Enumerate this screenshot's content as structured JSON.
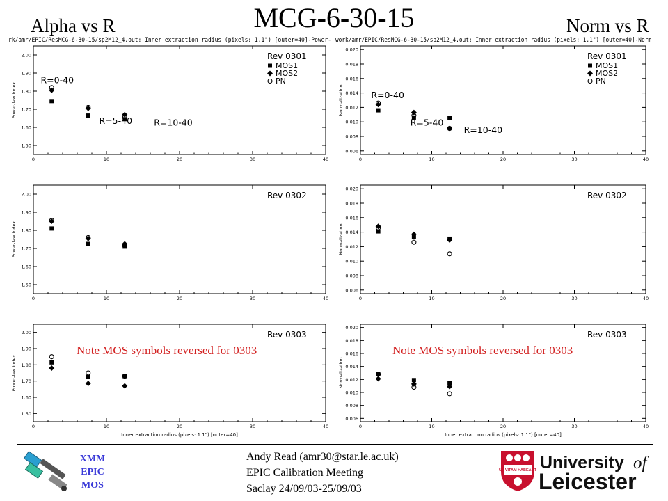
{
  "slide": {
    "title": "MCG-6-30-15",
    "left_heading": "Alpha vs R",
    "right_heading": "Norm vs R",
    "note_text": "Note MOS symbols reversed for 0303",
    "footer": {
      "xmm_lines": [
        "XMM",
        "EPIC",
        "MOS"
      ],
      "author": "Andy Read (amr30@star.le.ac.uk)",
      "meeting": "EPIC Calibration Meeting",
      "place_date": "Saclay 24/09/03-25/09/03"
    },
    "logo": {
      "line1": "University",
      "of": "of",
      "line2": "Leicester",
      "motto": "UT VITAM HABEANT",
      "brand_color": "#c8102e"
    }
  },
  "chart_data": [
    {
      "type": "scatter",
      "header": "rk/amr/EPIC/ResMCG-6-30-15/sp2M12_4.out: Inner extraction radius (pixels: 1.1\") [outer=40]-Power-",
      "xlim": [
        0,
        40
      ],
      "ylim": [
        1.45,
        2.05
      ],
      "yticks": [
        "1.50",
        "1.60",
        "1.70",
        "1.80",
        "1.90",
        "2.00"
      ],
      "ytick_values": [
        1.5,
        1.6,
        1.7,
        1.8,
        1.9,
        2.0
      ],
      "xticks": [
        "0",
        "10",
        "20",
        "30",
        "40"
      ],
      "ylabel": "Power-law index",
      "xlabel": "",
      "rev_label": "Rev 0301",
      "legend": [
        "MOS1",
        "MOS2",
        "PN"
      ],
      "annotations": [
        {
          "text": "R=0-40",
          "x": 1.0,
          "y": 1.845
        },
        {
          "text": "R=5-40",
          "x": 9.0,
          "y": 1.62
        },
        {
          "text": "R=10-40",
          "x": 16.5,
          "y": 1.61
        }
      ],
      "series": [
        {
          "name": "MOS1",
          "marker": "square",
          "x": [
            2.5,
            7.5,
            12.5
          ],
          "y": [
            1.745,
            1.665,
            1.645
          ]
        },
        {
          "name": "MOS2",
          "marker": "diamond",
          "x": [
            2.5,
            7.5,
            12.5
          ],
          "y": [
            1.805,
            1.705,
            1.67
          ]
        },
        {
          "name": "PN",
          "marker": "circle",
          "x": [
            2.5,
            7.5,
            12.5
          ],
          "y": [
            1.82,
            1.71,
            1.655
          ]
        }
      ]
    },
    {
      "type": "scatter",
      "header": "work/amr/EPIC/ResMCG-6-30-15/sp2M12_4.out: Inner extraction radius (pixels: 1.1\") [outer=40]-Norm",
      "xlim": [
        0,
        40
      ],
      "ylim": [
        0.0055,
        0.0205
      ],
      "yticks": [
        "0.006",
        "0.008",
        "0.010",
        "0.012",
        "0.014",
        "0.016",
        "0.018",
        "0.020"
      ],
      "ytick_values": [
        0.006,
        0.008,
        0.01,
        0.012,
        0.014,
        0.016,
        0.018,
        0.02
      ],
      "xticks": [
        "0",
        "10",
        "20",
        "30",
        "40"
      ],
      "ylabel": "Normalization",
      "xlabel": "",
      "rev_label": "Rev 0301",
      "legend": [
        "MOS1",
        "MOS2",
        "PN"
      ],
      "annotations": [
        {
          "text": "R=0-40",
          "x": 1.5,
          "y": 0.0133
        },
        {
          "text": "R=5-40",
          "x": 7.0,
          "y": 0.0095
        },
        {
          "text": "R=10-40",
          "x": 14.5,
          "y": 0.0085
        }
      ],
      "series": [
        {
          "name": "MOS1",
          "marker": "square",
          "x": [
            2.5,
            7.5,
            12.5
          ],
          "y": [
            0.0116,
            0.0106,
            0.0105
          ]
        },
        {
          "name": "MOS2",
          "marker": "diamond",
          "x": [
            2.5,
            7.5,
            12.5
          ],
          "y": [
            0.0124,
            0.0113,
            0.0091
          ]
        },
        {
          "name": "PN",
          "marker": "circle",
          "x": [
            2.5,
            7.5,
            12.5
          ],
          "y": [
            0.0126,
            0.0109,
            0.0091
          ]
        }
      ]
    },
    {
      "type": "scatter",
      "header": "",
      "xlim": [
        0,
        40
      ],
      "ylim": [
        1.45,
        2.05
      ],
      "yticks": [
        "1.50",
        "1.60",
        "1.70",
        "1.80",
        "1.90",
        "2.00"
      ],
      "ytick_values": [
        1.5,
        1.6,
        1.7,
        1.8,
        1.9,
        2.0
      ],
      "xticks": [
        "0",
        "10",
        "20",
        "30",
        "40"
      ],
      "ylabel": "Power-law index",
      "xlabel": "",
      "rev_label": "Rev 0302",
      "legend": [],
      "annotations": [],
      "series": [
        {
          "name": "MOS1",
          "marker": "square",
          "x": [
            2.5,
            7.5,
            12.5
          ],
          "y": [
            1.81,
            1.725,
            1.71
          ]
        },
        {
          "name": "MOS2",
          "marker": "diamond",
          "x": [
            2.5,
            7.5,
            12.5
          ],
          "y": [
            1.85,
            1.755,
            1.725
          ]
        },
        {
          "name": "PN",
          "marker": "circle",
          "x": [
            2.5,
            7.5,
            12.5
          ],
          "y": [
            1.855,
            1.76,
            1.715
          ]
        }
      ]
    },
    {
      "type": "scatter",
      "header": "",
      "xlim": [
        0,
        40
      ],
      "ylim": [
        0.0055,
        0.0205
      ],
      "yticks": [
        "0.006",
        "0.008",
        "0.010",
        "0.012",
        "0.014",
        "0.016",
        "0.018",
        "0.020"
      ],
      "ytick_values": [
        0.006,
        0.008,
        0.01,
        0.012,
        0.014,
        0.016,
        0.018,
        0.02
      ],
      "xticks": [
        "0",
        "10",
        "20",
        "30",
        "40"
      ],
      "ylabel": "Normalization",
      "xlabel": "",
      "rev_label": "Rev 0302",
      "legend": [],
      "annotations": [],
      "series": [
        {
          "name": "MOS1",
          "marker": "square",
          "x": [
            2.5,
            7.5,
            12.5
          ],
          "y": [
            0.0141,
            0.0133,
            0.0131
          ]
        },
        {
          "name": "MOS2",
          "marker": "diamond",
          "x": [
            2.5,
            7.5,
            12.5
          ],
          "y": [
            0.0148,
            0.0137,
            0.0129
          ]
        },
        {
          "name": "PN",
          "marker": "circle",
          "x": [
            2.5,
            7.5,
            12.5
          ],
          "y": [
            0.0146,
            0.0126,
            0.011
          ]
        }
      ]
    },
    {
      "type": "scatter",
      "header": "",
      "xlim": [
        0,
        40
      ],
      "ylim": [
        1.45,
        2.05
      ],
      "yticks": [
        "1.50",
        "1.60",
        "1.70",
        "1.80",
        "1.90",
        "2.00"
      ],
      "ytick_values": [
        1.5,
        1.6,
        1.7,
        1.8,
        1.9,
        2.0
      ],
      "xticks": [
        "0",
        "10",
        "20",
        "30",
        "40"
      ],
      "ylabel": "Power-law index",
      "xlabel": "Inner extraction radius (pixels: 1.1\") [outer=40]",
      "rev_label": "Rev 0303",
      "legend": [],
      "annotations": [],
      "series": [
        {
          "name": "MOS1",
          "marker": "square",
          "x": [
            2.5,
            7.5,
            12.5
          ],
          "y": [
            1.815,
            1.725,
            1.73
          ]
        },
        {
          "name": "MOS2",
          "marker": "diamond",
          "x": [
            2.5,
            7.5,
            12.5
          ],
          "y": [
            1.78,
            1.685,
            1.67
          ]
        },
        {
          "name": "PN",
          "marker": "circle",
          "x": [
            2.5,
            7.5,
            12.5
          ],
          "y": [
            1.85,
            1.75,
            1.73
          ]
        }
      ]
    },
    {
      "type": "scatter",
      "header": "",
      "xlim": [
        0,
        40
      ],
      "ylim": [
        0.0055,
        0.0205
      ],
      "yticks": [
        "0.006",
        "0.008",
        "0.010",
        "0.012",
        "0.014",
        "0.016",
        "0.018",
        "0.020"
      ],
      "ytick_values": [
        0.006,
        0.008,
        0.01,
        0.012,
        0.014,
        0.016,
        0.018,
        0.02
      ],
      "xticks": [
        "0",
        "10",
        "20",
        "30",
        "40"
      ],
      "ylabel": "Normalization",
      "xlabel": "Inner extraction radius (pixels: 1.1\") [outer=40]",
      "rev_label": "Rev 0303",
      "legend": [],
      "annotations": [],
      "series": [
        {
          "name": "MOS1",
          "marker": "square",
          "x": [
            2.5,
            7.5,
            12.5
          ],
          "y": [
            0.0128,
            0.0119,
            0.0115
          ]
        },
        {
          "name": "MOS2",
          "marker": "diamond",
          "x": [
            2.5,
            7.5,
            12.5
          ],
          "y": [
            0.0121,
            0.0113,
            0.0109
          ]
        },
        {
          "name": "PN",
          "marker": "circle",
          "x": [
            2.5,
            7.5,
            12.5
          ],
          "y": [
            0.0128,
            0.0108,
            0.0098
          ]
        }
      ]
    }
  ]
}
